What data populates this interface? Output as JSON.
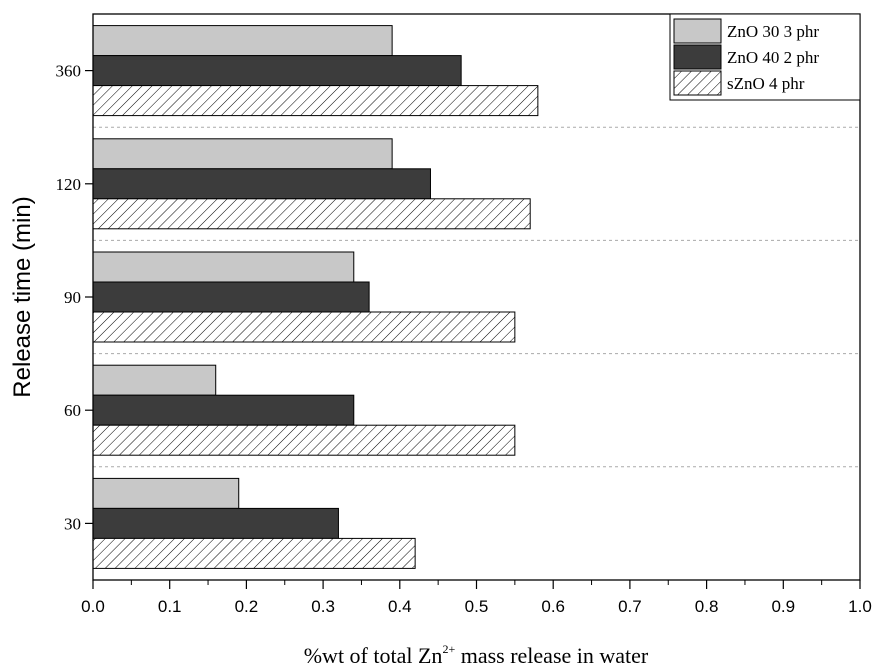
{
  "chart_data": {
    "type": "bar",
    "orientation": "horizontal",
    "categories": [
      "30",
      "60",
      "90",
      "120",
      "360"
    ],
    "series": [
      {
        "name": "ZnO 30 3 phr",
        "values": [
          0.19,
          0.16,
          0.34,
          0.39,
          0.39
        ],
        "color": "#c8c8c8",
        "pattern": "solid"
      },
      {
        "name": "ZnO 40 2 phr",
        "values": [
          0.32,
          0.34,
          0.36,
          0.44,
          0.48
        ],
        "color": "#3c3c3c",
        "pattern": "solid"
      },
      {
        "name": "sZnO 4 phr",
        "values": [
          0.42,
          0.55,
          0.55,
          0.57,
          0.58
        ],
        "color": "#ffffff",
        "pattern": "hatch"
      }
    ],
    "xlim": [
      0.0,
      1.0
    ],
    "xticks": [
      "0.0",
      "0.1",
      "0.2",
      "0.3",
      "0.4",
      "0.5",
      "0.6",
      "0.7",
      "0.8",
      "0.9",
      "1.0"
    ],
    "xlabel_main": "%wt of total Zn",
    "xlabel_sup": "2+",
    "xlabel_tail": " mass release in water",
    "ylabel": "Release time (min)",
    "legend_position": "top-right",
    "grid": "dashed separators between categories"
  }
}
